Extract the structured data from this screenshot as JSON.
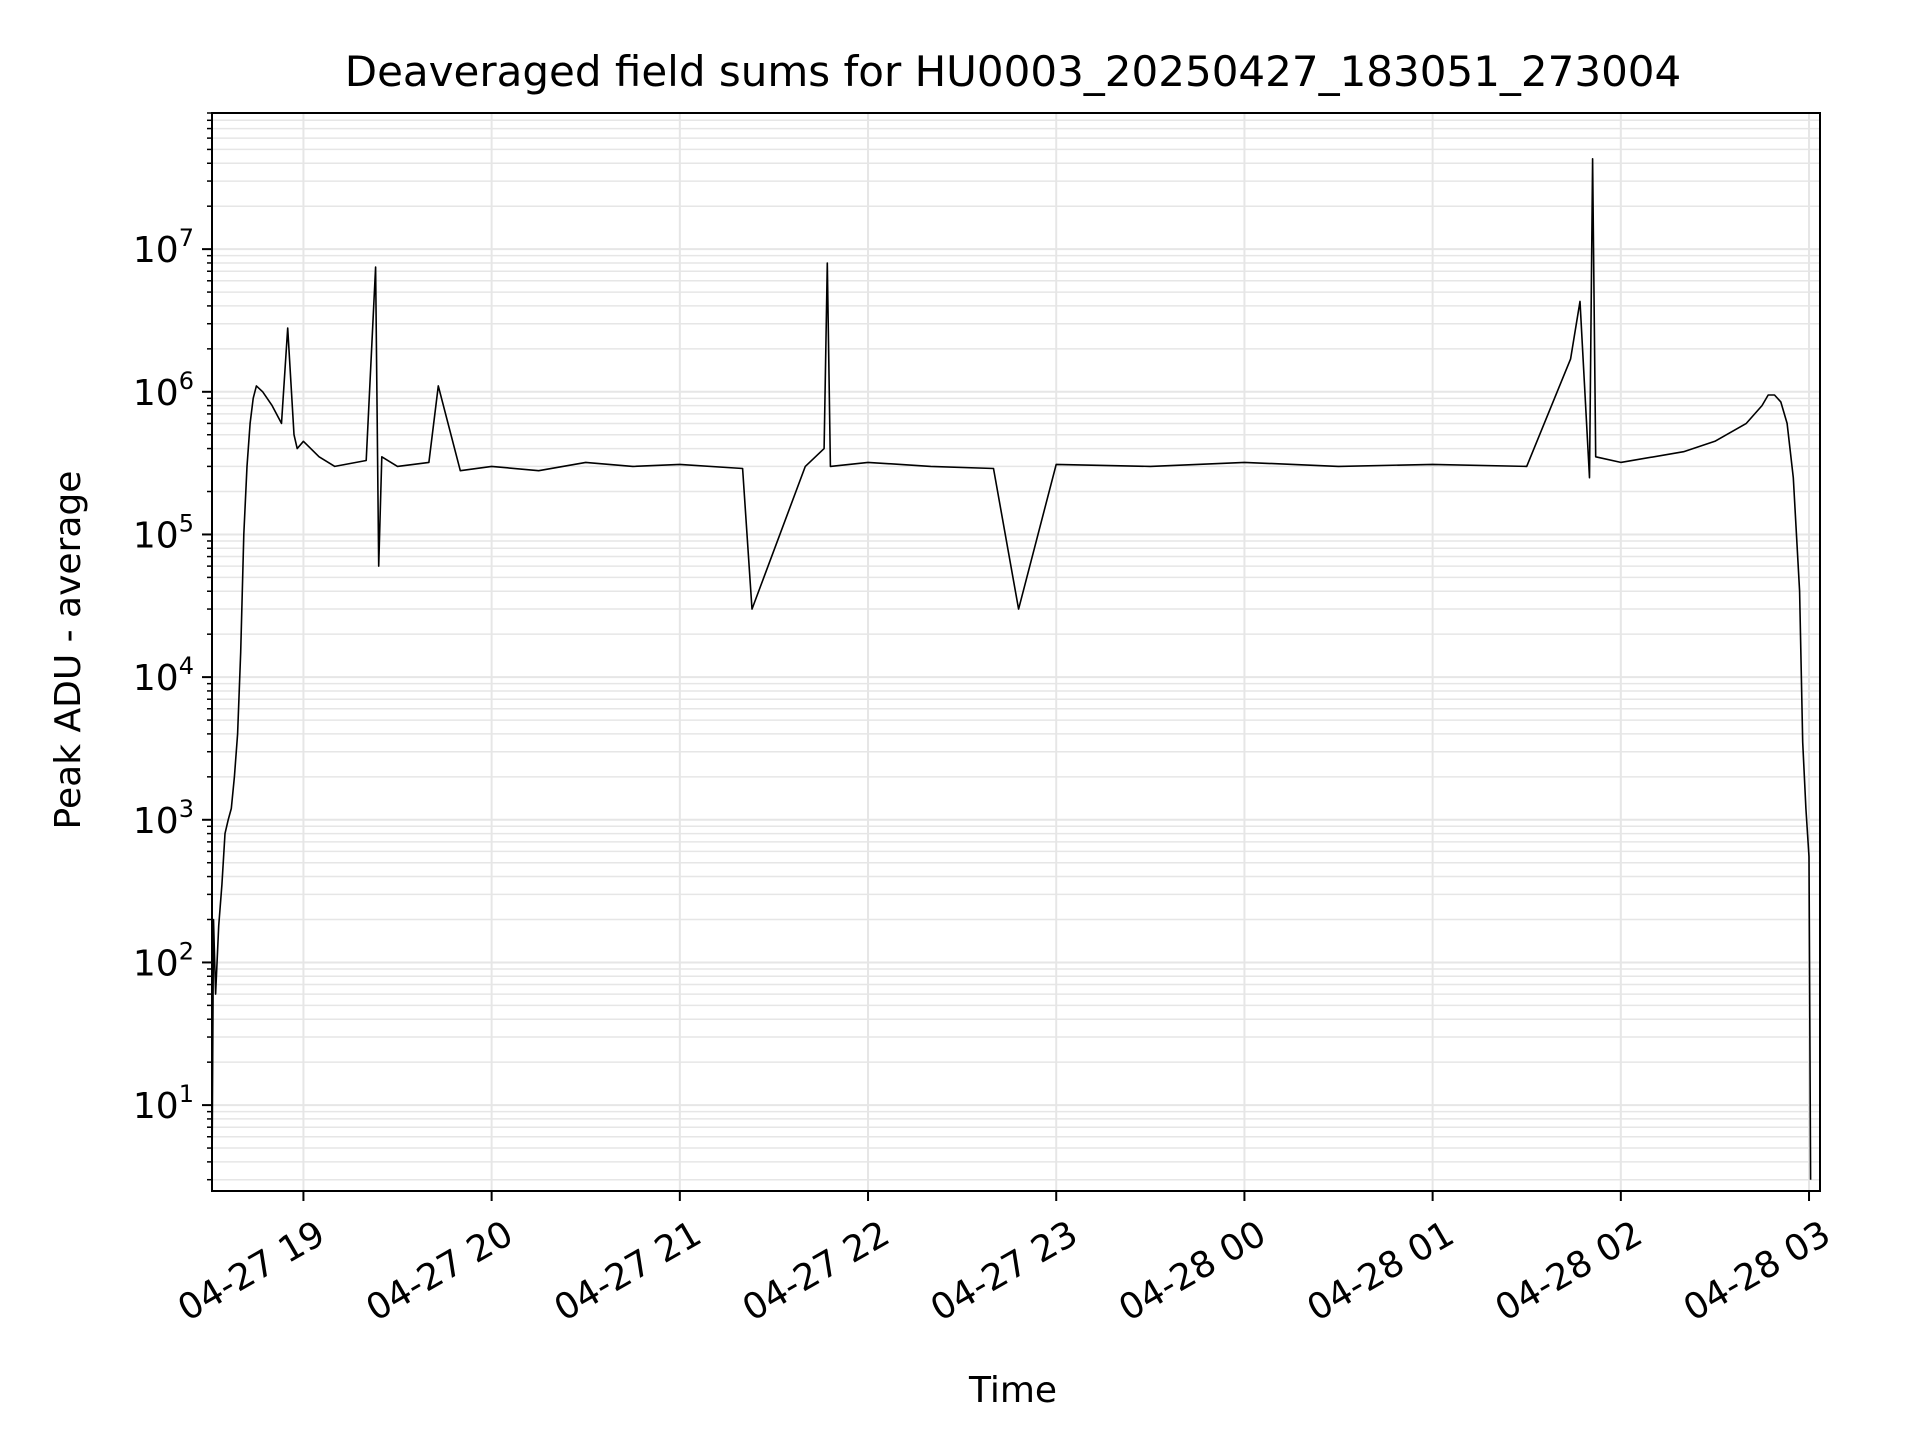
{
  "chart_data": {
    "type": "line",
    "title": "Deaveraged field sums for HU0003_20250427_183051_273004",
    "xlabel": "Time",
    "ylabel": "Peak ADU - average",
    "yscale": "log",
    "ylim": [
      2.5,
      90000000
    ],
    "xlim": [
      "2025-04-27 18:30:51",
      "2025-04-28 03:03:30"
    ],
    "grid": true,
    "grid_minor": true,
    "line_color": "#000000",
    "grid_color": "#e6e6e6",
    "x_ticks": [
      {
        "value": "2025-04-27 19:00",
        "label": "04-27 19"
      },
      {
        "value": "2025-04-27 20:00",
        "label": "04-27 20"
      },
      {
        "value": "2025-04-27 21:00",
        "label": "04-27 21"
      },
      {
        "value": "2025-04-27 22:00",
        "label": "04-27 22"
      },
      {
        "value": "2025-04-27 23:00",
        "label": "04-27 23"
      },
      {
        "value": "2025-04-28 00:00",
        "label": "04-28 00"
      },
      {
        "value": "2025-04-28 01:00",
        "label": "04-28 01"
      },
      {
        "value": "2025-04-28 02:00",
        "label": "04-28 02"
      },
      {
        "value": "2025-04-28 03:00",
        "label": "04-28 03"
      }
    ],
    "y_ticks": [
      {
        "value": 10,
        "base": "10",
        "exp": "1"
      },
      {
        "value": 100,
        "base": "10",
        "exp": "2"
      },
      {
        "value": 1000,
        "base": "10",
        "exp": "3"
      },
      {
        "value": 10000,
        "base": "10",
        "exp": "4"
      },
      {
        "value": 100000,
        "base": "10",
        "exp": "5"
      },
      {
        "value": 1000000,
        "base": "10",
        "exp": "6"
      },
      {
        "value": 10000000,
        "base": "10",
        "exp": "7"
      }
    ],
    "series": [
      {
        "x": [
          "2025-04-27 18:30:51",
          "2025-04-27 18:31:20",
          "2025-04-27 18:32:00",
          "2025-04-27 18:33:00",
          "2025-04-27 18:34:00",
          "2025-04-27 18:35:00",
          "2025-04-27 18:36:00",
          "2025-04-27 18:37:00",
          "2025-04-27 18:38:00",
          "2025-04-27 18:39:00",
          "2025-04-27 18:40:00",
          "2025-04-27 18:41:00",
          "2025-04-27 18:42:00",
          "2025-04-27 18:43:00",
          "2025-04-27 18:44:00",
          "2025-04-27 18:45:00",
          "2025-04-27 18:47:00",
          "2025-04-27 18:50:00",
          "2025-04-27 18:53:00",
          "2025-04-27 18:55:00",
          "2025-04-27 18:57:00",
          "2025-04-27 18:58:00",
          "2025-04-27 19:00:00",
          "2025-04-27 19:05:00",
          "2025-04-27 19:10:00",
          "2025-04-27 19:20:00",
          "2025-04-27 19:23:00",
          "2025-04-27 19:24:00",
          "2025-04-27 19:25:00",
          "2025-04-27 19:30:00",
          "2025-04-27 19:40:00",
          "2025-04-27 19:43:00",
          "2025-04-27 19:50:00",
          "2025-04-27 20:00:00",
          "2025-04-27 20:15:00",
          "2025-04-27 20:30:00",
          "2025-04-27 20:45:00",
          "2025-04-27 21:00:00",
          "2025-04-27 21:20:00",
          "2025-04-27 21:23:00",
          "2025-04-27 21:40:00",
          "2025-04-27 21:46:00",
          "2025-04-27 21:47:00",
          "2025-04-27 21:48:00",
          "2025-04-27 22:00:00",
          "2025-04-27 22:20:00",
          "2025-04-27 22:40:00",
          "2025-04-27 22:48:00",
          "2025-04-27 23:00:00",
          "2025-04-27 23:30:00",
          "2025-04-28 00:00:00",
          "2025-04-28 00:30:00",
          "2025-04-28 01:00:00",
          "2025-04-28 01:30:00",
          "2025-04-28 01:44:00",
          "2025-04-28 01:47:00",
          "2025-04-28 01:50:00",
          "2025-04-28 01:51:00",
          "2025-04-28 01:52:00",
          "2025-04-28 02:00:00",
          "2025-04-28 02:20:00",
          "2025-04-28 02:30:00",
          "2025-04-28 02:40:00",
          "2025-04-28 02:45:00",
          "2025-04-28 02:47:00",
          "2025-04-28 02:49:00",
          "2025-04-28 02:51:00",
          "2025-04-28 02:53:00",
          "2025-04-28 02:55:00",
          "2025-04-28 02:57:00",
          "2025-04-28 02:58:00",
          "2025-04-28 02:59:00",
          "2025-04-28 03:00:00",
          "2025-04-28 03:00:30"
        ],
        "y": [
          3,
          200,
          60,
          180,
          350,
          800,
          1000,
          1200,
          2000,
          4000,
          15000,
          100000,
          300000,
          600000,
          900000,
          1100000,
          1000000,
          800000,
          600000,
          2800000,
          500000,
          400000,
          450000,
          350000,
          300000,
          330000,
          7500000,
          60000,
          350000,
          300000,
          320000,
          1100000,
          280000,
          300000,
          280000,
          320000,
          300000,
          310000,
          290000,
          30000,
          300000,
          400000,
          8000000,
          300000,
          320000,
          300000,
          290000,
          30000,
          310000,
          300000,
          320000,
          300000,
          310000,
          300000,
          1700000,
          4300000,
          250000,
          43000000,
          350000,
          320000,
          380000,
          450000,
          600000,
          800000,
          950000,
          950000,
          850000,
          600000,
          250000,
          40000,
          3500,
          1200,
          550,
          3
        ]
      }
    ]
  }
}
